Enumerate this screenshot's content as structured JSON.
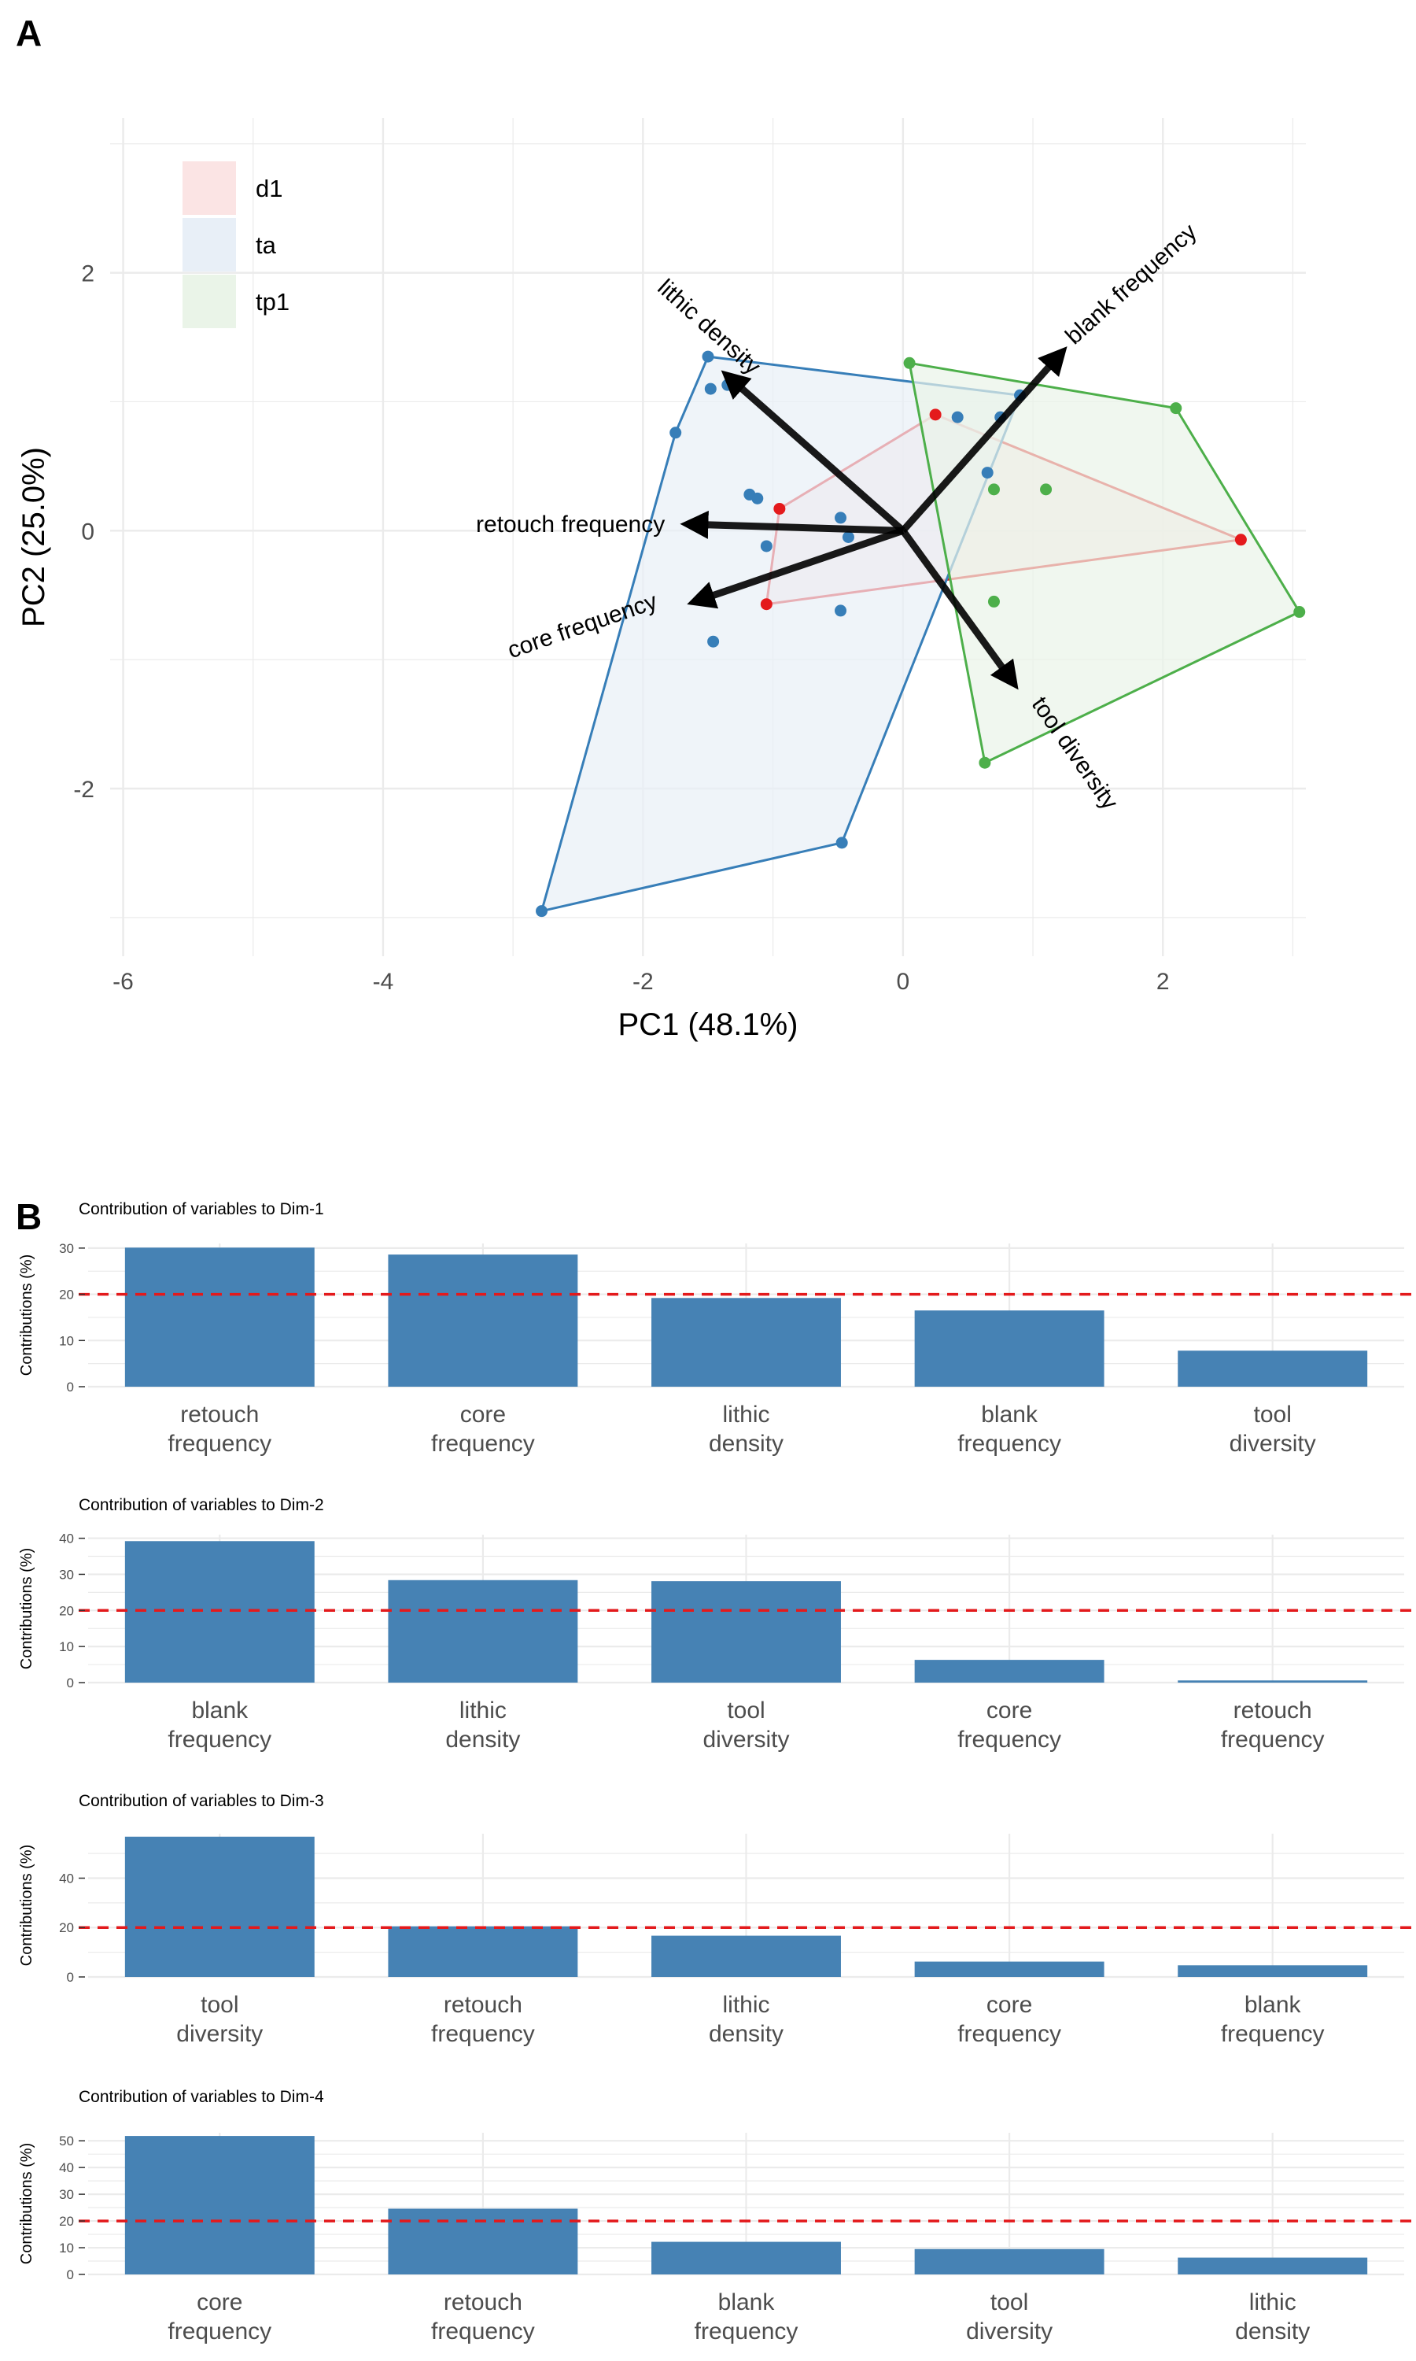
{
  "panel_a": {
    "label": "A",
    "chart_data": {
      "type": "scatter",
      "subtype": "pca-biplot",
      "xlabel": "PC1 (48.1%)",
      "ylabel": "PC2 (25.0%)",
      "xlim": [
        -6.1,
        3.1
      ],
      "ylim": [
        -3.3,
        3.2
      ],
      "xticks": [
        -6,
        -4,
        -2,
        0,
        2
      ],
      "yticks": [
        -2,
        0,
        2
      ],
      "grid": true,
      "legend_position": "top-left",
      "groups": [
        {
          "name": "d1",
          "color": "#E41A1C",
          "fill": "#FBE4E4",
          "points": [
            [
              0.25,
              0.9
            ],
            [
              2.6,
              -0.07
            ],
            [
              -1.05,
              -0.57
            ],
            [
              -0.95,
              0.17
            ]
          ],
          "hull": [
            [
              0.25,
              0.9
            ],
            [
              2.6,
              -0.07
            ],
            [
              -1.05,
              -0.57
            ],
            [
              -0.95,
              0.17
            ]
          ]
        },
        {
          "name": "ta",
          "color": "#377EB8",
          "fill": "#E8EFF7",
          "points": [
            [
              -1.5,
              1.35
            ],
            [
              -1.35,
              1.13
            ],
            [
              -1.48,
              1.1
            ],
            [
              -1.75,
              0.76
            ],
            [
              -1.18,
              0.28
            ],
            [
              -1.12,
              0.25
            ],
            [
              -1.05,
              -0.12
            ],
            [
              -0.48,
              0.1
            ],
            [
              -0.42,
              -0.05
            ],
            [
              -0.48,
              -0.62
            ],
            [
              -1.46,
              -0.86
            ],
            [
              -0.47,
              -2.42
            ],
            [
              -2.78,
              -2.95
            ],
            [
              0.42,
              0.88
            ],
            [
              0.75,
              0.88
            ],
            [
              0.65,
              0.45
            ],
            [
              0.9,
              1.05
            ]
          ],
          "hull": [
            [
              -1.5,
              1.35
            ],
            [
              0.9,
              1.05
            ],
            [
              -0.47,
              -2.42
            ],
            [
              -2.78,
              -2.95
            ],
            [
              -1.75,
              0.76
            ]
          ]
        },
        {
          "name": "tp1",
          "color": "#4DAF4A",
          "fill": "#EAF4E8",
          "points": [
            [
              0.05,
              1.3
            ],
            [
              2.1,
              0.95
            ],
            [
              3.05,
              -0.63
            ],
            [
              0.63,
              -1.8
            ],
            [
              0.7,
              0.32
            ],
            [
              1.1,
              0.32
            ],
            [
              0.7,
              -0.55
            ]
          ],
          "hull": [
            [
              0.05,
              1.3
            ],
            [
              2.1,
              0.95
            ],
            [
              3.05,
              -0.63
            ],
            [
              0.63,
              -1.8
            ]
          ]
        }
      ],
      "loadings": [
        {
          "name": "lithic density",
          "x": -1.35,
          "y": 1.2
        },
        {
          "name": "blank frequency",
          "x": 1.22,
          "y": 1.38
        },
        {
          "name": "retouch frequency",
          "x": -1.65,
          "y": 0.05
        },
        {
          "name": "core frequency",
          "x": -1.6,
          "y": -0.55
        },
        {
          "name": "tool diversity",
          "x": 0.85,
          "y": -1.18
        }
      ]
    }
  },
  "panel_b": {
    "label": "B",
    "chart_data": [
      {
        "type": "bar",
        "title": "Contribution of variables to Dim-1",
        "ylabel": "Contributions (%)",
        "categories": [
          "retouch\nfrequency",
          "core\nfrequency",
          "lithic\ndensity",
          "blank\nfrequency",
          "tool\ndiversity"
        ],
        "values": [
          30.1,
          28.6,
          19.2,
          16.5,
          7.8
        ],
        "reference_line": 20,
        "ylim": [
          0,
          31
        ],
        "yticks": [
          0,
          10,
          20,
          30
        ]
      },
      {
        "type": "bar",
        "title": "Contribution of variables to Dim-2",
        "ylabel": "Contributions (%)",
        "categories": [
          "blank\nfrequency",
          "lithic\ndensity",
          "tool\ndiversity",
          "core\nfrequency",
          "retouch\nfrequency"
        ],
        "values": [
          39.2,
          28.4,
          28.1,
          6.3,
          0.6
        ],
        "reference_line": 20,
        "ylim": [
          0,
          41
        ],
        "yticks": [
          0,
          10,
          20,
          30,
          40
        ]
      },
      {
        "type": "bar",
        "title": "Contribution of variables to Dim-3",
        "ylabel": "Contributions (%)",
        "categories": [
          "tool\ndiversity",
          "retouch\nfrequency",
          "lithic\ndensity",
          "core\nfrequency",
          "blank\nfrequency"
        ],
        "values": [
          56.8,
          20.5,
          16.7,
          6.2,
          4.7
        ],
        "reference_line": 20,
        "ylim": [
          0,
          58
        ],
        "yticks": [
          0,
          20,
          40
        ]
      },
      {
        "type": "bar",
        "title": "Contribution of variables to Dim-4",
        "ylabel": "Contributions (%)",
        "categories": [
          "core\nfrequency",
          "retouch\nfrequency",
          "blank\nfrequency",
          "tool\ndiversity",
          "lithic\ndensity"
        ],
        "values": [
          51.8,
          24.6,
          12.2,
          9.5,
          6.3
        ],
        "reference_line": 20,
        "ylim": [
          0,
          53
        ],
        "yticks": [
          0,
          10,
          20,
          30,
          40,
          50
        ]
      }
    ]
  }
}
